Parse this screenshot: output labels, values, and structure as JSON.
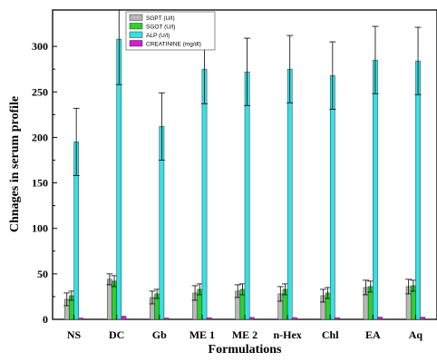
{
  "chart_data": {
    "type": "bar",
    "title": "",
    "xlabel": "Formulations",
    "ylabel": "Chnages in serum profile",
    "ylim": [
      0,
      340
    ],
    "yticks": [
      0,
      50,
      100,
      150,
      200,
      250,
      300
    ],
    "grid": false,
    "legend_position": "top-center",
    "categories": [
      "NS",
      "DC",
      "Gb",
      "ME 1",
      "ME 2",
      "n-Hex",
      "Chl",
      "EA",
      "Aq"
    ],
    "series": [
      {
        "name": "SGPT (U/l)",
        "color": "#b8b8b8",
        "values": [
          22,
          44,
          24,
          29,
          31,
          28,
          26,
          35,
          36
        ],
        "errors": [
          7,
          6,
          7,
          8,
          7,
          8,
          7,
          8,
          8
        ]
      },
      {
        "name": "SGOT (U/l)",
        "color": "#2bd12b",
        "values": [
          26,
          42,
          28,
          33,
          33,
          33,
          29,
          36,
          37
        ],
        "errors": [
          5,
          6,
          5,
          6,
          6,
          6,
          6,
          6,
          6
        ]
      },
      {
        "name": "ALP (U/l)",
        "color": "#35e0e6",
        "values": [
          195,
          308,
          212,
          275,
          272,
          275,
          268,
          285,
          284
        ],
        "errors": [
          37,
          50,
          37,
          38,
          37,
          37,
          37,
          37,
          37
        ]
      },
      {
        "name": "CREATININE (mg/dl)",
        "color": "#d61ad6",
        "values": [
          1.5,
          3.5,
          1.5,
          1.8,
          2.2,
          2.0,
          1.8,
          2.5,
          2.5
        ],
        "errors": [
          0,
          0,
          0,
          0,
          0,
          0,
          0,
          0,
          0
        ]
      }
    ]
  }
}
